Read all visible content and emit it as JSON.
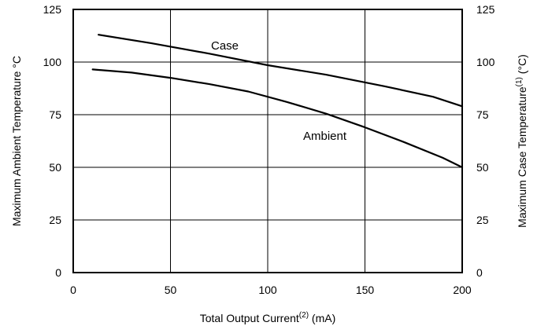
{
  "chart_data": {
    "type": "line",
    "x_axis": {
      "label_main": "Total Output Current",
      "label_sup": "(2)",
      "label_unit": " (mA)",
      "ticks": [
        "0",
        "50",
        "100",
        "150",
        "200"
      ],
      "range": [
        0,
        200
      ]
    },
    "y_axis_left": {
      "label": "Maximum Ambient Temperature °C",
      "ticks": [
        "0",
        "25",
        "50",
        "75",
        "100",
        "125"
      ],
      "range": [
        0,
        125
      ]
    },
    "y_axis_right": {
      "label_main": "Maximum Case Temperature",
      "label_sup": "(1)",
      "label_unit": " (°C)",
      "ticks": [
        "0",
        "25",
        "50",
        "75",
        "100",
        "125"
      ],
      "range": [
        0,
        125
      ]
    },
    "grid": true,
    "series": [
      {
        "name": "Case",
        "x": [
          13,
          40,
          70,
          100,
          130,
          160,
          185,
          200
        ],
        "y": [
          113,
          109,
          104,
          98.5,
          94,
          88.5,
          83.5,
          79
        ]
      },
      {
        "name": "Ambient",
        "x": [
          10,
          30,
          50,
          70,
          90,
          110,
          130,
          150,
          170,
          190,
          200
        ],
        "y": [
          96.5,
          95,
          92.5,
          89.5,
          86,
          81,
          75.5,
          69,
          62,
          54.5,
          50
        ]
      }
    ]
  }
}
